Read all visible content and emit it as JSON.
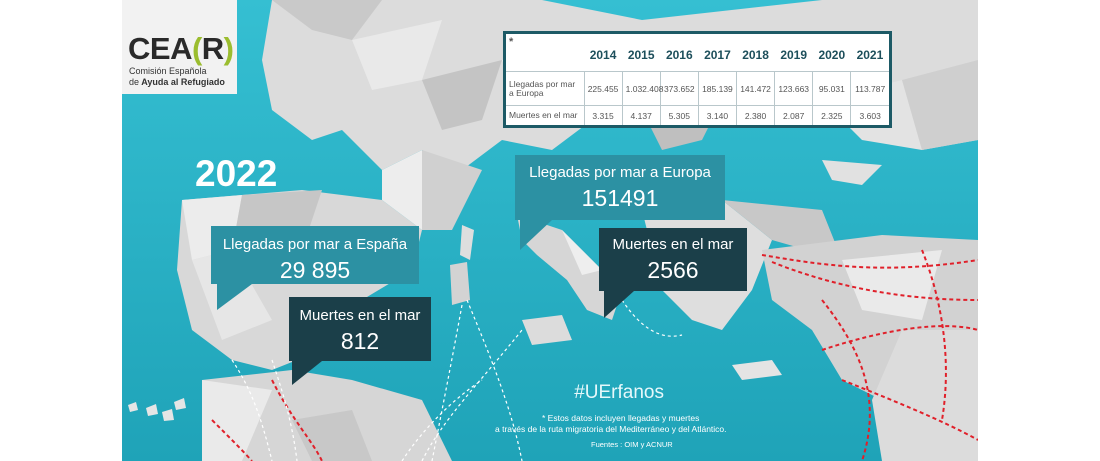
{
  "logo": {
    "word_main": "CEA",
    "word_open": "(",
    "word_letter": "R",
    "word_close": ")",
    "line1": "Comisión Española",
    "line2_prefix": "de",
    "line2_bold": "Ayuda al Refugiado"
  },
  "table": {
    "corner": "*",
    "years": [
      "2014",
      "2015",
      "2016",
      "2017",
      "2018",
      "2019",
      "2020",
      "2021"
    ],
    "rows": [
      {
        "label": "Llegadas por mar a Europa",
        "values": [
          "225.455",
          "1.032.408",
          "373.652",
          "185.139",
          "141.472",
          "123.663",
          "95.031",
          "113.787"
        ]
      },
      {
        "label": "Muertes en el mar",
        "values": [
          "3.315",
          "4.137",
          "5.305",
          "3.140",
          "2.380",
          "2.087",
          "2.325",
          "3.603"
        ]
      }
    ]
  },
  "year": "2022",
  "spain": {
    "arrivals_label": "Llegadas por mar a España",
    "arrivals_value": "29 895",
    "deaths_label": "Muertes en el mar",
    "deaths_value": "812"
  },
  "europe": {
    "arrivals_label": "Llegadas por mar a Europa",
    "arrivals_value": "151491",
    "deaths_label": "Muertes en el mar",
    "deaths_value": "2566"
  },
  "hashtag": "#UErfanos",
  "note_line1": "* Estos datos incluyen  llegadas y muertes",
  "note_line2": "a través de la ruta migratoria del Mediterráneo y del Atlántico.",
  "sources": "Fuentes : OIM y ACNUR",
  "colors": {
    "sea": "#2bb3c7",
    "callout_light": "#2c91a3",
    "callout_dark": "#1b3f49",
    "route": "#e0202a"
  }
}
